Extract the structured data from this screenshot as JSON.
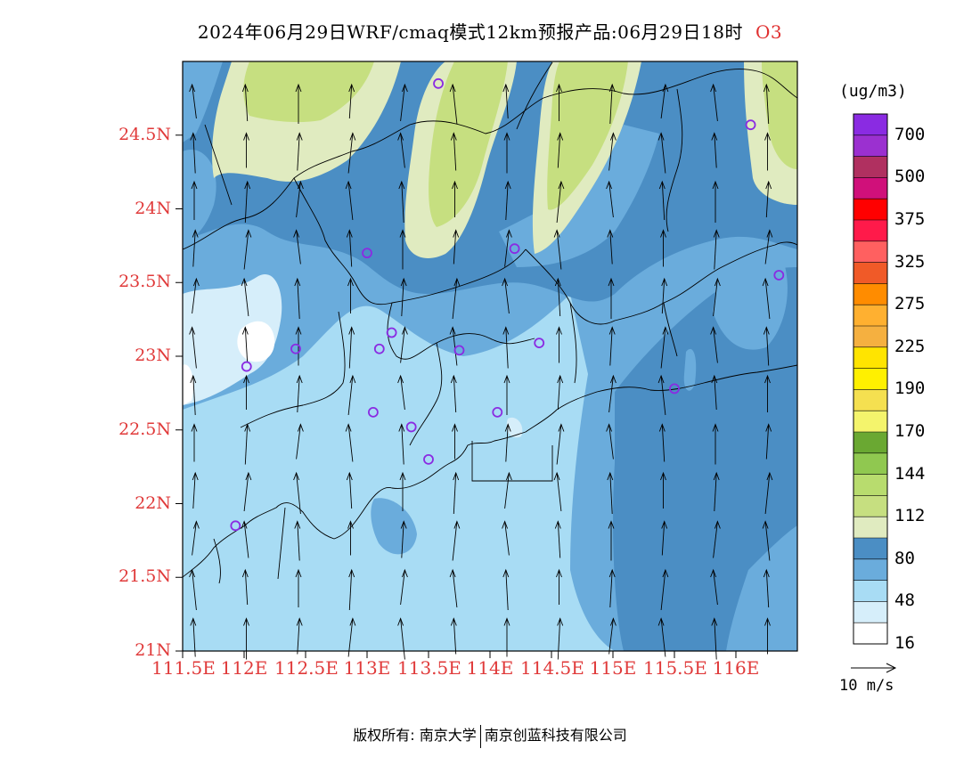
{
  "title": {
    "text": "2024年06月29日WRF/cmaq模式12km预报产品:06月29日18时",
    "pollutant": "O3"
  },
  "map": {
    "lon_range": [
      111.5,
      116.5
    ],
    "lat_range": [
      21.0,
      25.0
    ],
    "lat_labels": [
      "24.5N",
      "24N",
      "23.5N",
      "23N",
      "22.5N",
      "22N",
      "21.5N",
      "21N"
    ],
    "lon_labels": [
      "111.5E",
      "112E",
      "112.5E",
      "113E",
      "113.5E",
      "114E",
      "114.5E",
      "115E",
      "115.5E",
      "116E"
    ],
    "wind_direction": "southerly (arrows pointing north)"
  },
  "colorbar": {
    "unit": "(ug/m3)",
    "labels": [
      "700",
      "500",
      "375",
      "325",
      "275",
      "225",
      "190",
      "170",
      "144",
      "112",
      "80",
      "48",
      "16"
    ],
    "colors": [
      "#8a2be2",
      "#9b30d0",
      "#b03060",
      "#d0107a",
      "#ff0000",
      "#ff1a4a",
      "#ff6060",
      "#f05a28",
      "#ff8c00",
      "#ffb030",
      "#f5b040",
      "#ffe400",
      "#fff000",
      "#f5e050",
      "#f4f46c",
      "#6aa832",
      "#90c850",
      "#b8dc6e",
      "#c6df80",
      "#e0ebc0",
      "#4b8ec4",
      "#6aacdc",
      "#a8dcf4",
      "#d6eefa",
      "#ffffff"
    ]
  },
  "vector_reference": {
    "label": "10 m/s"
  },
  "stations": [
    {
      "lon": 113.58,
      "lat": 24.85
    },
    {
      "lon": 116.12,
      "lat": 24.57
    },
    {
      "lon": 113.0,
      "lat": 23.7
    },
    {
      "lon": 114.2,
      "lat": 23.73
    },
    {
      "lon": 116.35,
      "lat": 23.55
    },
    {
      "lon": 112.42,
      "lat": 23.05
    },
    {
      "lon": 112.02,
      "lat": 22.93
    },
    {
      "lon": 113.1,
      "lat": 23.05
    },
    {
      "lon": 113.2,
      "lat": 23.16
    },
    {
      "lon": 113.75,
      "lat": 23.04
    },
    {
      "lon": 114.4,
      "lat": 23.09
    },
    {
      "lon": 115.5,
      "lat": 22.78
    },
    {
      "lon": 113.05,
      "lat": 22.62
    },
    {
      "lon": 113.36,
      "lat": 22.52
    },
    {
      "lon": 114.06,
      "lat": 22.62
    },
    {
      "lon": 113.5,
      "lat": 22.3
    },
    {
      "lon": 111.93,
      "lat": 21.85
    }
  ],
  "footer": {
    "copyright": "版权所有: 南京大学",
    "company": "南京创蓝科技有限公司"
  }
}
